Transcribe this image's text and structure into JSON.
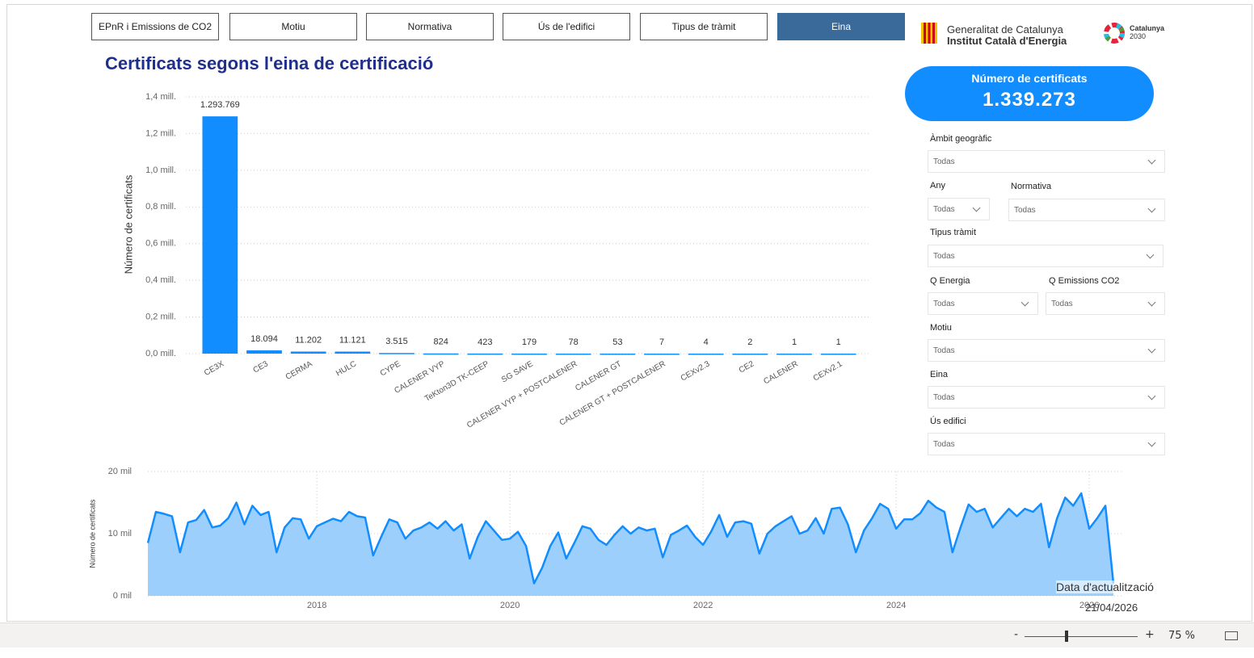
{
  "tabs": [
    {
      "label": "EPnR i Emissions de CO2",
      "active": false
    },
    {
      "label": "Motiu",
      "active": false
    },
    {
      "label": "Normativa",
      "active": false
    },
    {
      "label": "Ús de l'edifici",
      "active": false
    },
    {
      "label": "Tipus de tràmit",
      "active": false
    },
    {
      "label": "Eina",
      "active": true
    }
  ],
  "logos": {
    "gencat_line1": "Generalitat de Catalunya",
    "gencat_line2": "Institut Català d'Energia",
    "cat_line1": "Catalunya",
    "cat_line2": "2030"
  },
  "kpi": {
    "label": "Número de certificats",
    "value": "1.339.273"
  },
  "filters": [
    {
      "label": "Àmbit geogràfic",
      "value": "Todas"
    },
    {
      "label": "Any",
      "value": "Todas"
    },
    {
      "label": "Normativa",
      "value": "Todas"
    },
    {
      "label": "Tipus tràmit",
      "value": "Todas"
    },
    {
      "label": "Q Energia",
      "value": "Todas"
    },
    {
      "label": "Q Emissions CO2",
      "value": "Todas"
    },
    {
      "label": "Motiu",
      "value": "Todas"
    },
    {
      "label": "Eina",
      "value": "Todas"
    },
    {
      "label": "Ús edifici",
      "value": "Todas"
    }
  ],
  "update": {
    "label": "Data d'actualització",
    "date": "21/04/2026"
  },
  "zoom": {
    "minus": "-",
    "plus": "+",
    "level": "75 %"
  },
  "chart_data": [
    {
      "type": "bar",
      "title": "Certificats segons l'eina de certificació",
      "y_label": "Número de certificats",
      "categories": [
        "CE3X",
        "CE3",
        "CERMA",
        "HULC",
        "CYPE",
        "CALENER VYP",
        "TeKton3D TK-CEEP",
        "SG SAVE",
        "CALENER VYP + POSTCALENER",
        "CALENER GT",
        "CALENER GT + POSTCALENER",
        "CEXv2.3",
        "CE2",
        "CALENER",
        "CEXv2.1"
      ],
      "values": [
        1293769,
        18094,
        11202,
        11121,
        3515,
        824,
        423,
        179,
        78,
        53,
        7,
        4,
        2,
        1,
        1
      ],
      "value_labels": [
        "1.293.769",
        "18.094",
        "11.202",
        "11.121",
        "3.515",
        "824",
        "423",
        "179",
        "78",
        "53",
        "7",
        "4",
        "2",
        "1",
        "1"
      ],
      "color": "#118dff",
      "ylim": [
        0,
        1400000
      ],
      "yticks": [
        {
          "value": 0,
          "label": "0,0 mill."
        },
        {
          "value": 200000,
          "label": "0,2 mill."
        },
        {
          "value": 400000,
          "label": "0,4 mill."
        },
        {
          "value": 600000,
          "label": "0,6 mill."
        },
        {
          "value": 800000,
          "label": "0,8 mill."
        },
        {
          "value": 1000000,
          "label": "1,0 mill."
        },
        {
          "value": 1200000,
          "label": "1,2 mill."
        },
        {
          "value": 1400000,
          "label": "1,4 mill."
        }
      ],
      "grid": true
    },
    {
      "type": "area",
      "y_label": "Número de certificats",
      "x": [
        2016.25,
        2016.333,
        2016.417,
        2016.5,
        2016.583,
        2016.667,
        2016.75,
        2016.833,
        2016.917,
        2017,
        2017.083,
        2017.167,
        2017.25,
        2017.333,
        2017.417,
        2017.5,
        2017.583,
        2017.667,
        2017.75,
        2017.833,
        2017.917,
        2018,
        2018.083,
        2018.167,
        2018.25,
        2018.333,
        2018.417,
        2018.5,
        2018.583,
        2018.667,
        2018.75,
        2018.833,
        2018.917,
        2019,
        2019.083,
        2019.167,
        2019.25,
        2019.333,
        2019.417,
        2019.5,
        2019.583,
        2019.667,
        2019.75,
        2019.833,
        2019.917,
        2020,
        2020.083,
        2020.167,
        2020.25,
        2020.333,
        2020.417,
        2020.5,
        2020.583,
        2020.667,
        2020.75,
        2020.833,
        2020.917,
        2021,
        2021.083,
        2021.167,
        2021.25,
        2021.333,
        2021.417,
        2021.5,
        2021.583,
        2021.667,
        2021.75,
        2021.833,
        2021.917,
        2022,
        2022.083,
        2022.167,
        2022.25,
        2022.333,
        2022.417,
        2022.5,
        2022.583,
        2022.667,
        2022.75,
        2022.833,
        2022.917,
        2023,
        2023.083,
        2023.167,
        2023.25,
        2023.333,
        2023.417,
        2023.5,
        2023.583,
        2023.667,
        2023.75,
        2023.833,
        2023.917,
        2024,
        2024.083,
        2024.167,
        2024.25,
        2024.333,
        2024.417,
        2024.5,
        2024.583,
        2024.667,
        2024.75,
        2024.833,
        2024.917,
        2025,
        2025.083,
        2025.167,
        2025.25,
        2025.333,
        2025.417,
        2025.5,
        2025.583,
        2025.667,
        2025.75,
        2025.833,
        2025.917,
        2026,
        2026.083,
        2026.167,
        2026.25
      ],
      "values": [
        8500,
        13500,
        13200,
        12800,
        7000,
        11800,
        12200,
        13800,
        11000,
        11300,
        12500,
        15000,
        11500,
        14500,
        13000,
        13500,
        7000,
        11000,
        12500,
        12300,
        9200,
        11200,
        11800,
        12400,
        12000,
        13500,
        12800,
        12600,
        6500,
        9500,
        12300,
        11800,
        9200,
        10500,
        11000,
        11800,
        10800,
        12000,
        10500,
        11500,
        6000,
        9500,
        12000,
        10500,
        9000,
        9200,
        10300,
        8000,
        2000,
        4500,
        8000,
        10200,
        6000,
        8500,
        11200,
        10800,
        9000,
        8200,
        9800,
        11200,
        10000,
        11000,
        10500,
        10800,
        6200,
        9800,
        10500,
        11300,
        9500,
        8200,
        10300,
        13000,
        9500,
        11800,
        12000,
        11600,
        6800,
        10000,
        11200,
        12000,
        12800,
        10000,
        10500,
        12500,
        10000,
        14000,
        14200,
        11500,
        7000,
        10500,
        12500,
        14800,
        14000,
        10800,
        12300,
        12300,
        13300,
        15300,
        14200,
        13500,
        7000,
        11000,
        14700,
        13500,
        14000,
        11000,
        12500,
        14000,
        12800,
        14000,
        13500,
        14800,
        7800,
        12500,
        15800,
        14500,
        16500,
        10800,
        12500,
        14500,
        2000
      ],
      "color": "#118dff",
      "fill": "#9ccffc",
      "xlim": [
        2016.25,
        2026.25
      ],
      "xticks": [
        2018,
        2020,
        2022,
        2024,
        2026
      ],
      "ylim": [
        0,
        20000
      ],
      "yticks": [
        {
          "value": 0,
          "label": "0 mil"
        },
        {
          "value": 10000,
          "label": "10 mil"
        },
        {
          "value": 20000,
          "label": "20 mil"
        }
      ],
      "grid": true
    }
  ]
}
